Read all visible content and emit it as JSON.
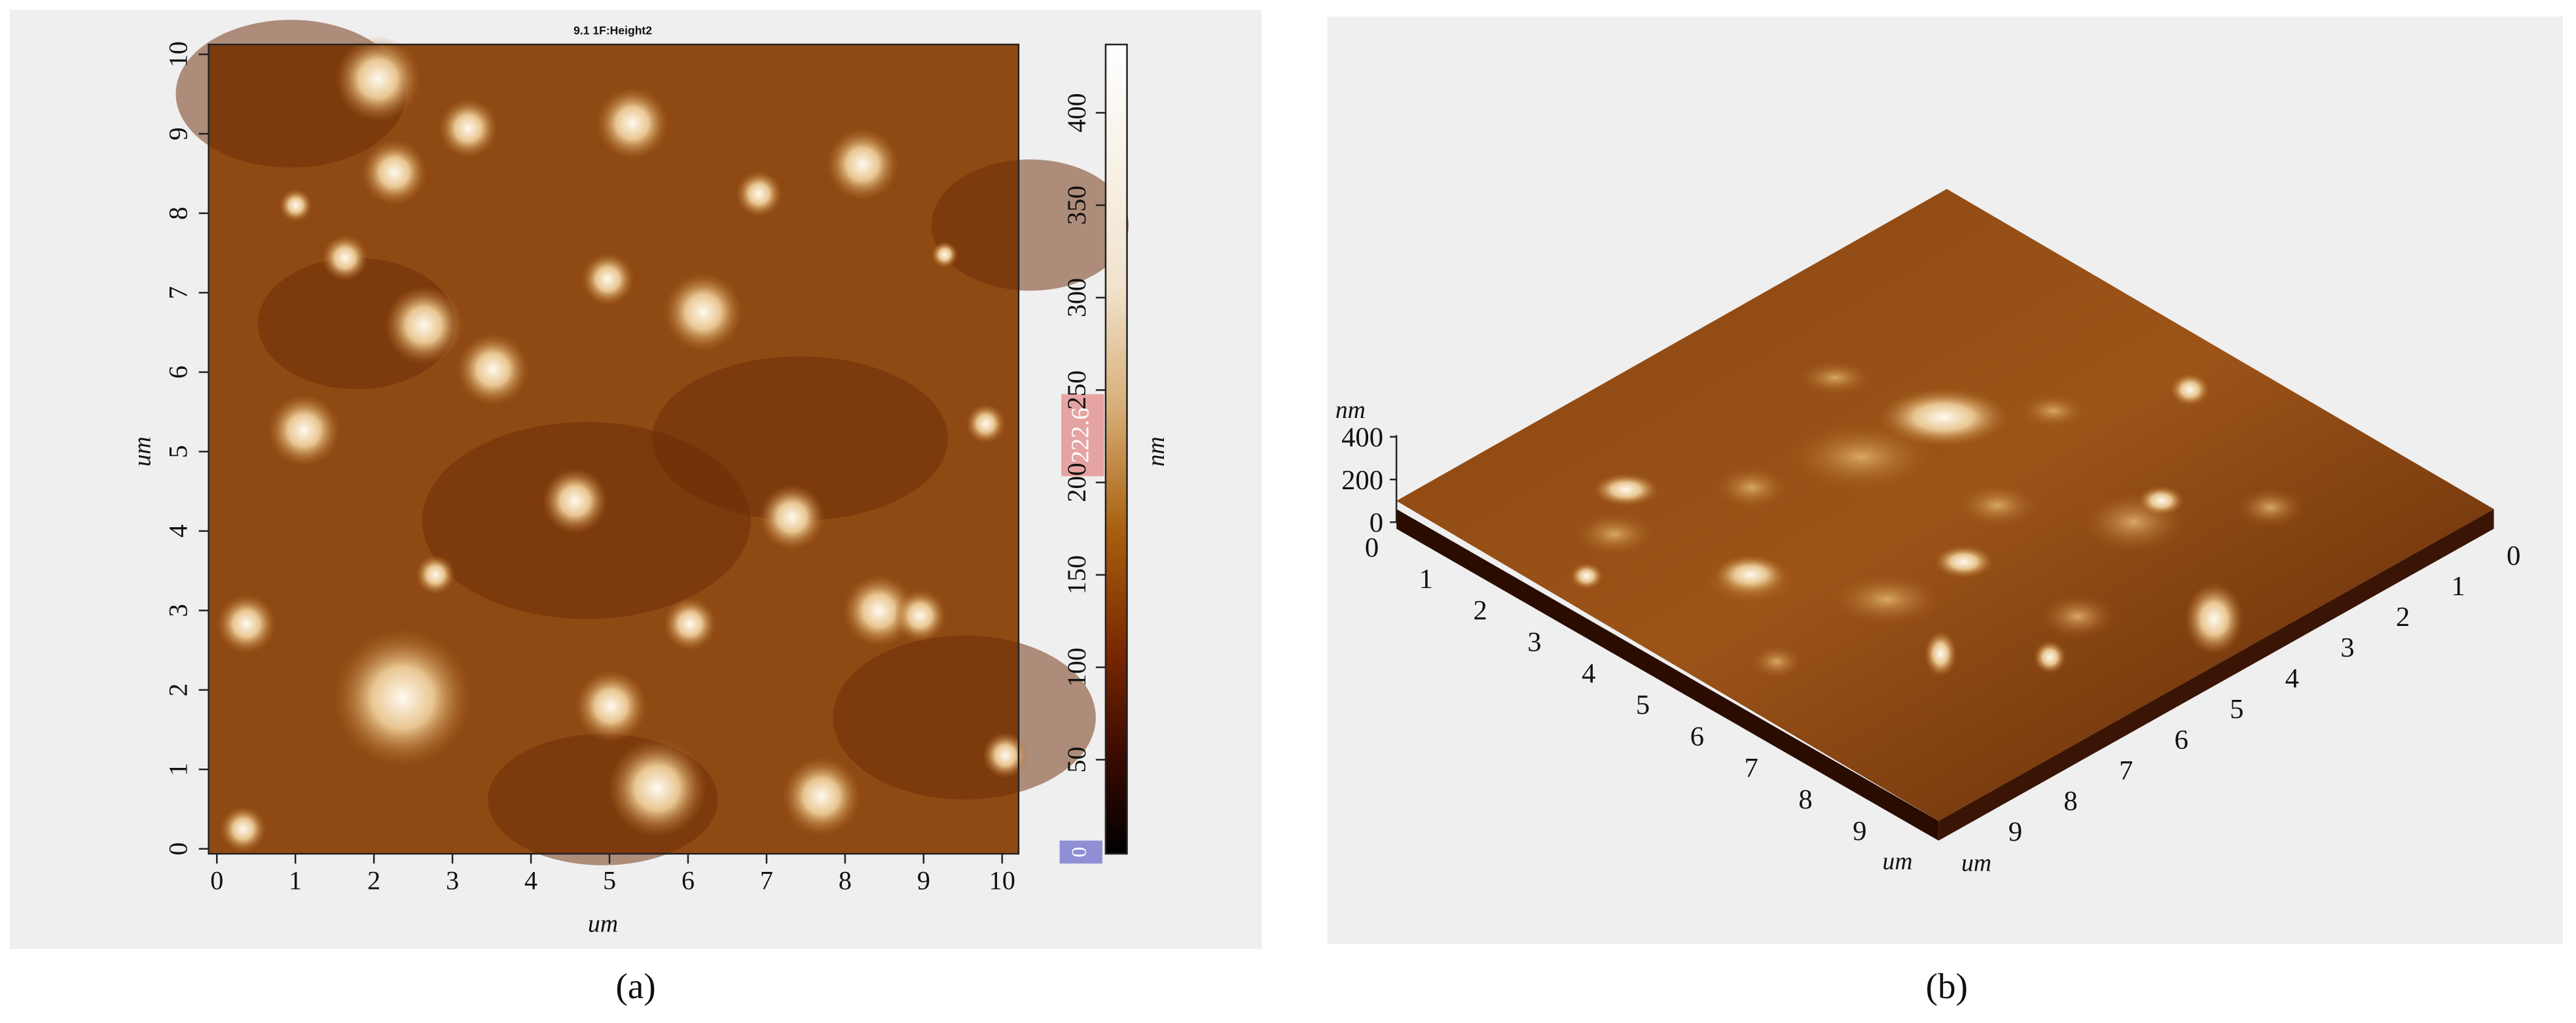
{
  "panel_a": {
    "title": "9.1 1F:Height2",
    "x_label": "um",
    "y_label": "um",
    "x_ticks": [
      "0",
      "1",
      "2",
      "3",
      "4",
      "5",
      "6",
      "7",
      "8",
      "9",
      "10"
    ],
    "y_ticks": [
      "0",
      "1",
      "2",
      "3",
      "4",
      "5",
      "6",
      "7",
      "8",
      "9",
      "10"
    ],
    "colorbar": {
      "label": "nm",
      "ticks": [
        "0",
        "50",
        "100",
        "150",
        "200",
        "250",
        "300",
        "350",
        "400"
      ],
      "marker_high": "222.6",
      "marker_low": "0"
    },
    "caption": "(a)"
  },
  "panel_b": {
    "z_label": "nm",
    "z_ticks": [
      "0",
      "200",
      "400"
    ],
    "x_ticks": [
      "0",
      "1",
      "2",
      "3",
      "4",
      "5",
      "6",
      "7",
      "8",
      "9"
    ],
    "x_label": "um",
    "y_ticks": [
      "0",
      "1",
      "2",
      "3",
      "4",
      "5",
      "6",
      "7",
      "8",
      "9"
    ],
    "y_label": "um",
    "caption": "(b)"
  }
}
